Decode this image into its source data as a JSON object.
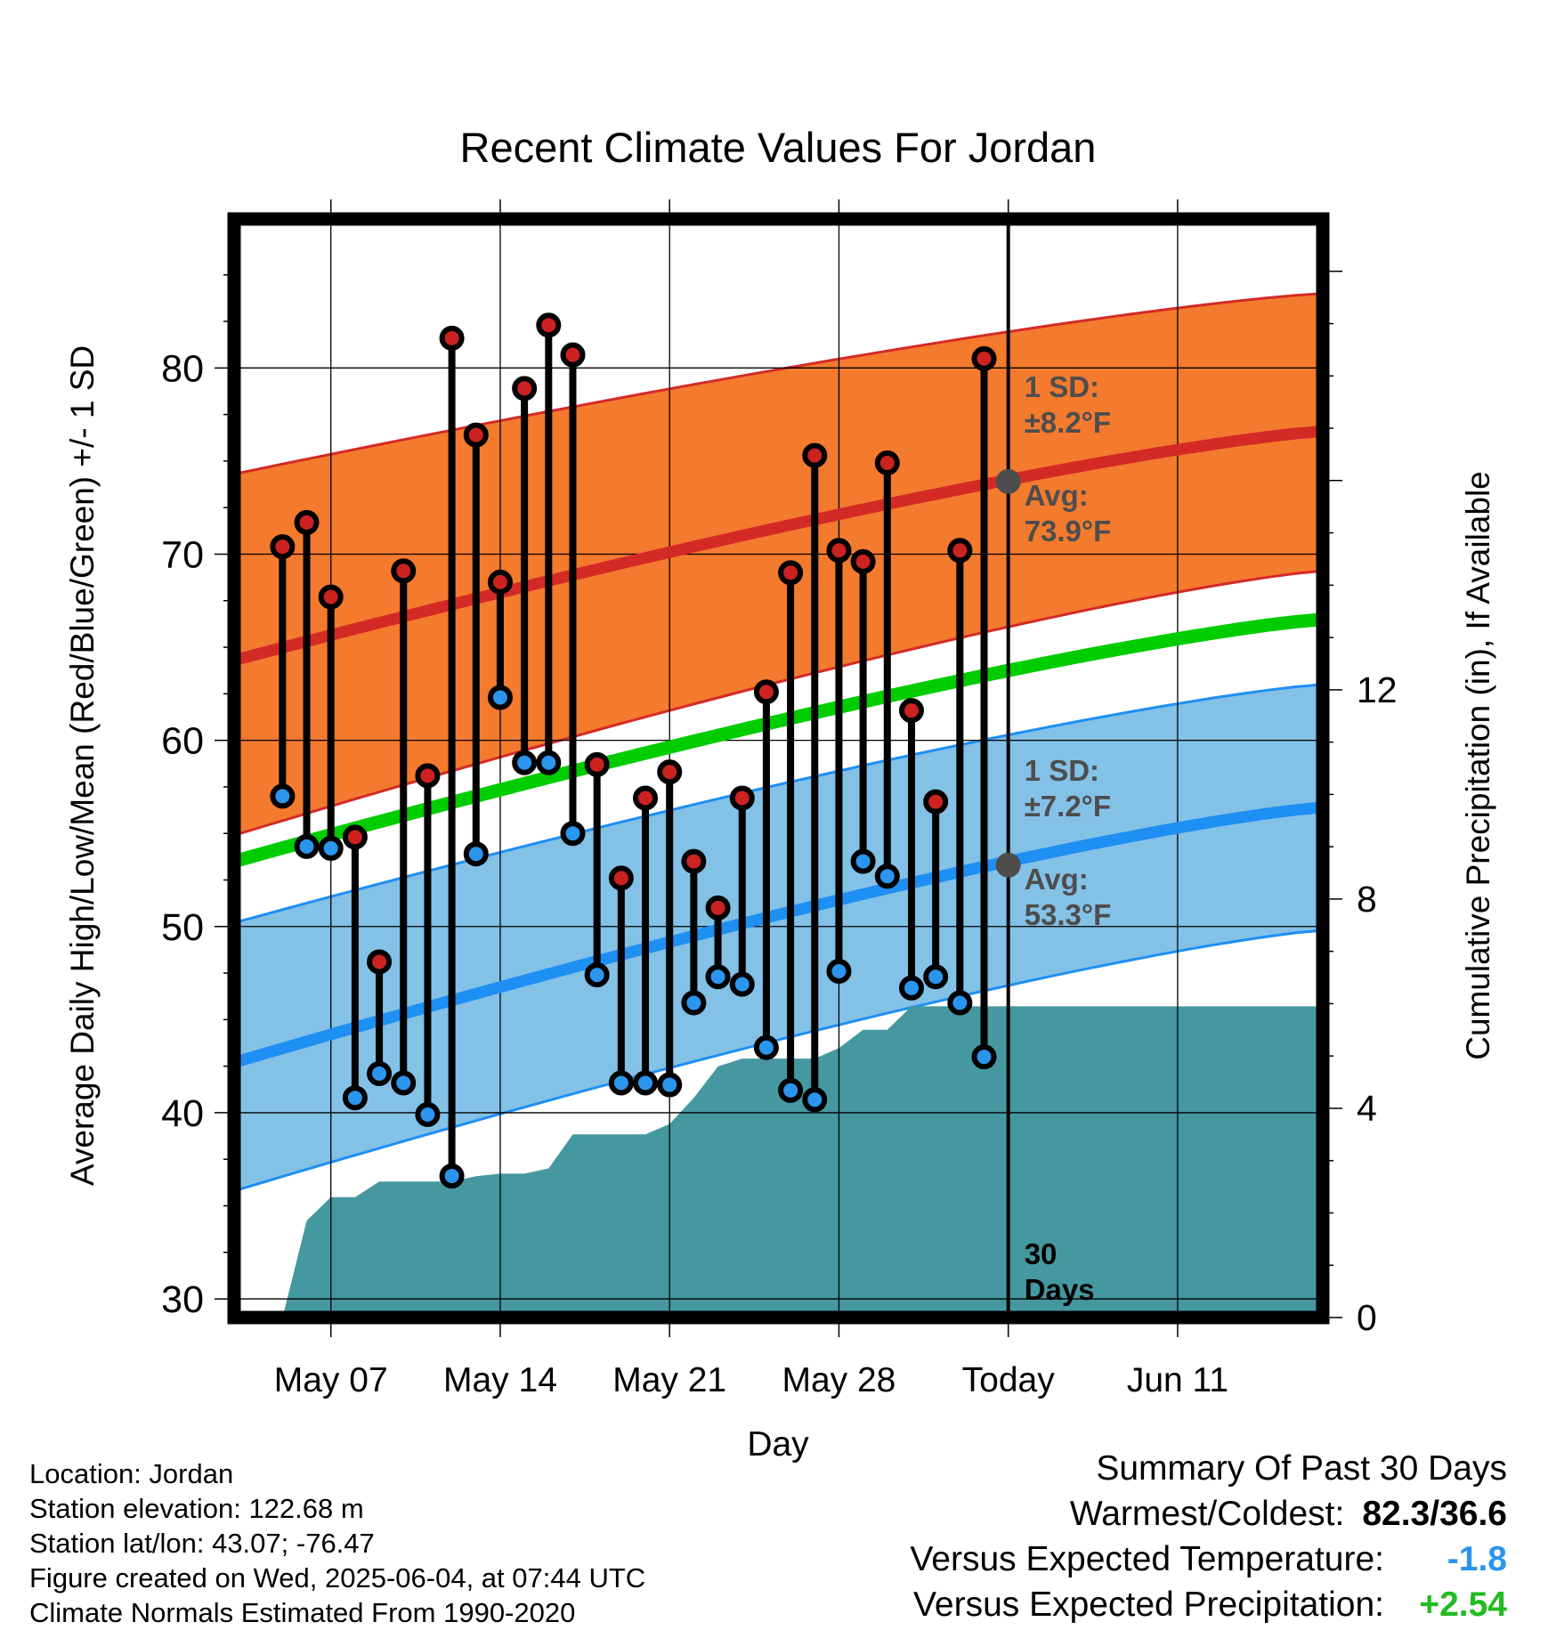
{
  "chart_data": {
    "type": "line",
    "title": "Recent Climate Values For Jordan",
    "xlabel": "Day",
    "ylabel_left": "Average Daily High/Low/Mean (Red/Blue/Green) +/- 1 SD",
    "ylabel_right": "Cumulative Precipitation (in), If Available",
    "ylim_left": [
      29,
      88
    ],
    "ylim_right": [
      0,
      21
    ],
    "xlim": [
      "2025-05-03",
      "2025-06-17"
    ],
    "x_ticks": [
      {
        "date": "2025-05-07",
        "label": "May 07"
      },
      {
        "date": "2025-05-14",
        "label": "May 14"
      },
      {
        "date": "2025-05-21",
        "label": "May 21"
      },
      {
        "date": "2025-05-28",
        "label": "May 28"
      },
      {
        "date": "2025-06-04",
        "label": "Today"
      },
      {
        "date": "2025-06-11",
        "label": "Jun 11"
      }
    ],
    "y_ticks_left": [
      30,
      40,
      50,
      60,
      70,
      80
    ],
    "y_ticks_right": [
      0,
      4,
      8,
      12
    ],
    "grid": true,
    "today": "2025-06-04",
    "period_label": [
      "30",
      "Days"
    ],
    "normal_high": {
      "start": 64.3,
      "end": 76.6,
      "sd_label": [
        "1 SD:",
        "±8.2°F"
      ],
      "avg_label": [
        "Avg:",
        "73.9°F"
      ],
      "today_value": 73.9
    },
    "normal_low": {
      "start": 42.7,
      "end": 56.4,
      "sd_label": [
        "1 SD:",
        "±7.2°F"
      ],
      "avg_label": [
        "Avg:",
        "53.3°F"
      ],
      "today_value": 53.3
    },
    "normal_mean": {
      "start": 53.5,
      "end": 66.5
    },
    "band_high": {
      "start_upper": 74.3,
      "end_upper": 84.0,
      "start_lower": 54.9,
      "end_lower": 69.1
    },
    "band_low": {
      "start_upper": 50.2,
      "end_upper": 63.0,
      "start_lower": 35.8,
      "end_lower": 49.8
    },
    "daily": {
      "dates": [
        "2025-05-05",
        "2025-05-06",
        "2025-05-07",
        "2025-05-08",
        "2025-05-09",
        "2025-05-10",
        "2025-05-11",
        "2025-05-12",
        "2025-05-13",
        "2025-05-14",
        "2025-05-15",
        "2025-05-16",
        "2025-05-17",
        "2025-05-18",
        "2025-05-19",
        "2025-05-20",
        "2025-05-21",
        "2025-05-22",
        "2025-05-23",
        "2025-05-24",
        "2025-05-25",
        "2025-05-26",
        "2025-05-27",
        "2025-05-28",
        "2025-05-29",
        "2025-05-30",
        "2025-05-31",
        "2025-06-01",
        "2025-06-02",
        "2025-06-03"
      ],
      "high": [
        70.4,
        71.7,
        67.7,
        54.8,
        48.1,
        69.1,
        58.1,
        81.6,
        76.4,
        68.5,
        78.9,
        82.3,
        80.7,
        58.7,
        52.6,
        56.9,
        58.3,
        53.5,
        51.0,
        56.9,
        62.6,
        69.0,
        75.3,
        70.2,
        69.6,
        74.9,
        61.6,
        56.7,
        70.2,
        80.5
      ],
      "low": [
        57.0,
        54.3,
        54.2,
        40.8,
        42.1,
        41.6,
        39.9,
        36.6,
        53.9,
        62.3,
        58.8,
        58.8,
        55.0,
        47.4,
        41.6,
        41.6,
        41.5,
        45.9,
        47.3,
        46.9,
        43.5,
        41.2,
        40.7,
        47.6,
        53.5,
        52.7,
        46.7,
        47.3,
        45.9,
        43.0
      ]
    },
    "precip": {
      "dates": [
        "2025-05-03",
        "2025-05-04",
        "2025-05-05",
        "2025-05-06",
        "2025-05-07",
        "2025-05-08",
        "2025-05-09",
        "2025-05-10",
        "2025-05-11",
        "2025-05-12",
        "2025-05-13",
        "2025-05-14",
        "2025-05-15",
        "2025-05-16",
        "2025-05-17",
        "2025-05-18",
        "2025-05-19",
        "2025-05-20",
        "2025-05-21",
        "2025-05-22",
        "2025-05-23",
        "2025-05-24",
        "2025-05-25",
        "2025-05-26",
        "2025-05-27",
        "2025-05-28",
        "2025-05-29",
        "2025-05-30",
        "2025-05-31",
        "2025-06-01",
        "2025-06-02",
        "2025-06-03",
        "2025-06-04",
        "2025-06-17"
      ],
      "values": [
        0,
        0,
        0,
        1.85,
        2.3,
        2.3,
        2.6,
        2.6,
        2.6,
        2.6,
        2.7,
        2.75,
        2.75,
        2.85,
        3.5,
        3.5,
        3.5,
        3.5,
        3.7,
        4.2,
        4.8,
        4.95,
        4.95,
        4.95,
        4.95,
        5.15,
        5.5,
        5.5,
        5.95,
        5.95,
        5.95,
        5.95,
        5.95,
        5.95
      ]
    },
    "colors": {
      "band_high": "#f47a2e",
      "band_low": "#84c1e7",
      "normal_high": "#d42a26",
      "normal_low": "#1e8ff3",
      "normal_mean": "#00cc00",
      "precip": "#45989f",
      "high_marker": "#cc2222",
      "low_marker": "#2b95ee",
      "label_gray": "#4d4d4d"
    }
  },
  "location": {
    "lines": [
      "Location: Jordan",
      "Station elevation: 122.68 m",
      "Station lat/lon: 43.07; -76.47",
      "Figure created on Wed, 2025-06-04, at 07:44 UTC",
      "Climate Normals Estimated From 1990-2020"
    ]
  },
  "summary": {
    "heading": "Summary Of Past 30 Days",
    "warmest_coldest_label": "Warmest/Coldest:",
    "warmest_coldest_value": "82.3/36.6",
    "temp_label": "Versus Expected Temperature:",
    "temp_value": "-1.8",
    "temp_color": "#2b95ee",
    "precip_label": "Versus Expected Precipitation:",
    "precip_value": "+2.54",
    "precip_color": "#22bb22"
  }
}
